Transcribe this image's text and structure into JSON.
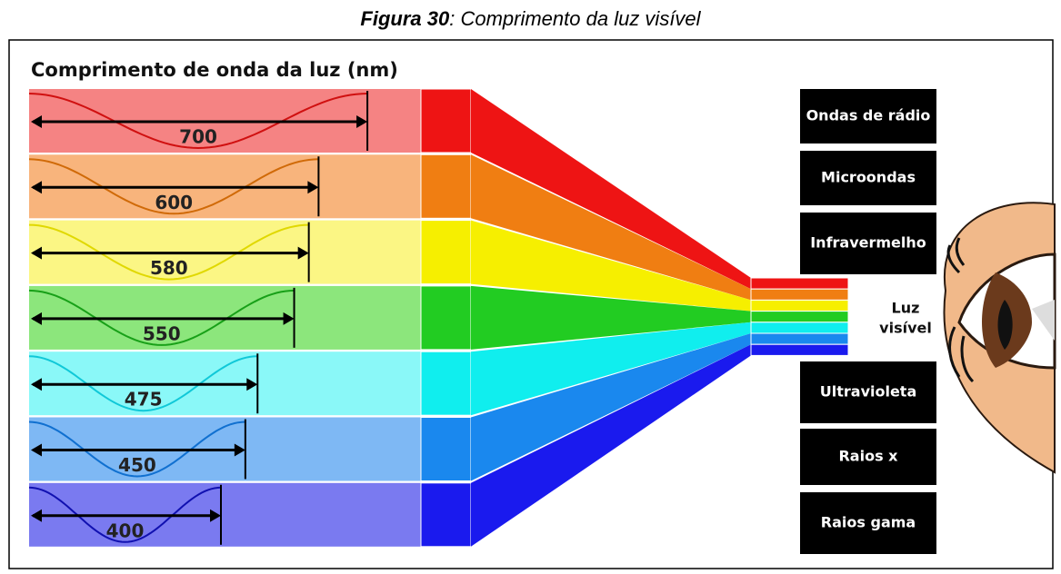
{
  "caption": {
    "number": "Figura 30",
    "text": ": Comprimento da luz visível"
  },
  "title": "Comprimento de onda da luz (nm)",
  "bands": [
    {
      "wavelength": 700,
      "light": "#f58383",
      "color": "#ee1414",
      "wave": "#d01010"
    },
    {
      "wavelength": 600,
      "light": "#f8b47c",
      "color": "#f07e12",
      "wave": "#d06a08"
    },
    {
      "wavelength": 580,
      "light": "#fbf684",
      "color": "#f6ef00",
      "wave": "#e0d800"
    },
    {
      "wavelength": 550,
      "light": "#8ce67c",
      "color": "#22cc22",
      "wave": "#18a018"
    },
    {
      "wavelength": 475,
      "light": "#8af8f8",
      "color": "#10eeee",
      "wave": "#10c8d8"
    },
    {
      "wavelength": 450,
      "light": "#7eb8f4",
      "color": "#1a88ee",
      "wave": "#1070d0"
    },
    {
      "wavelength": 400,
      "light": "#7a7af0",
      "color": "#1a1aee",
      "wave": "#1010b0"
    }
  ],
  "spectrum": {
    "above": [
      "Ondas de rádio",
      "Microondas",
      "Infravermelho"
    ],
    "visible": [
      "Luz",
      "visível"
    ],
    "below": [
      "Ultravioleta",
      "Raios x",
      "Raios gama"
    ]
  }
}
